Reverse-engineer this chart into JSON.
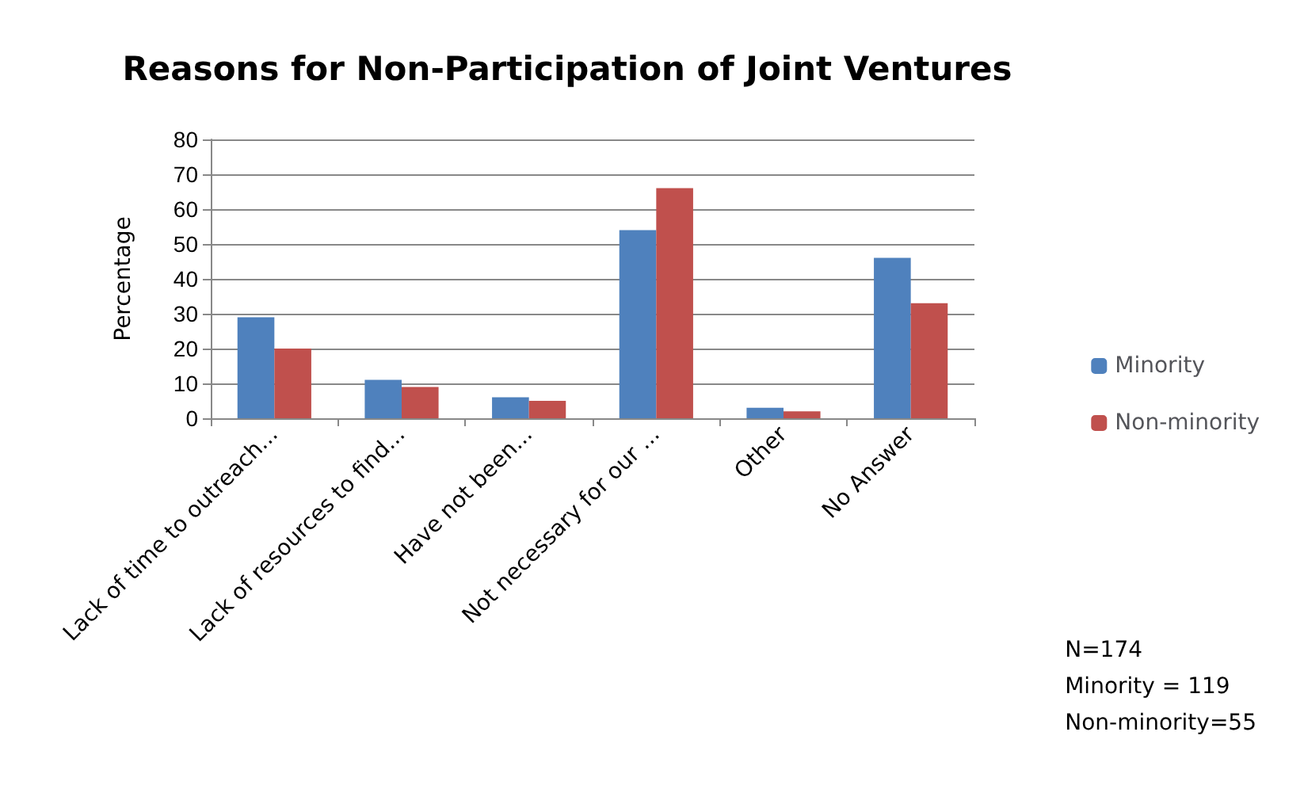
{
  "chart_data": {
    "type": "bar",
    "title": "Reasons for Non-Participation of Joint Ventures",
    "ylabel": "Percentage",
    "categories": [
      "Lack of time to outreach...",
      "Lack of resources to find...",
      "Have not been...",
      "Not necessary for our ...",
      "Other",
      "No Answer"
    ],
    "series": [
      {
        "name": "Minority",
        "color": "#4f81bd",
        "values": [
          29,
          11,
          6,
          54,
          3,
          46
        ]
      },
      {
        "name": "Non-minority",
        "color": "#c0504d",
        "values": [
          20,
          9,
          5,
          66,
          2,
          33
        ]
      }
    ],
    "ylim": [
      0,
      80
    ],
    "yticks": [
      0,
      10,
      20,
      30,
      40,
      50,
      60,
      70,
      80
    ],
    "grid": "y",
    "legend": "right",
    "annotations": [
      "N=174\nMinority = 119\nNon-minority=55"
    ]
  }
}
